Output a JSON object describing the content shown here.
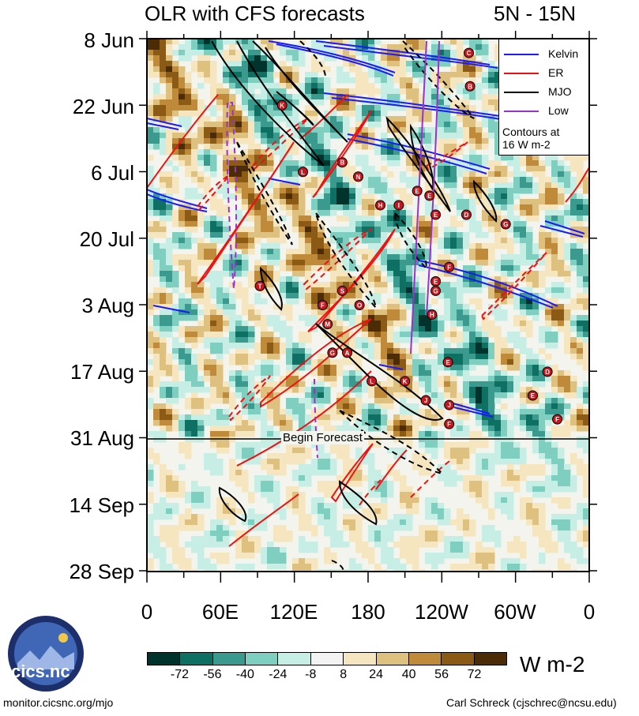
{
  "chart_data": {
    "type": "heatmap",
    "title": "OLR with CFS forecasts",
    "subtitle": "5N - 15N",
    "y_tick_labels": [
      "8 Jun",
      "22 Jun",
      "6 Jul",
      "20 Jul",
      "3 Aug",
      "17 Aug",
      "31 Aug",
      "14 Sep",
      "28 Sep"
    ],
    "x_tick_labels": [
      "0",
      "60E",
      "120E",
      "180",
      "120W",
      "60W",
      "0"
    ],
    "forecast_line_label": "Begin Forecast",
    "forecast_start": "31 Aug",
    "legend": {
      "entries": [
        {
          "label": "Kelvin",
          "color": "#1a1aff"
        },
        {
          "label": "ER",
          "color": "#ee1111"
        },
        {
          "label": "MJO",
          "color": "#000000"
        },
        {
          "label": "Low",
          "color": "#9933cc"
        }
      ],
      "note_line1": "Contours at",
      "note_line2": "16 W m-2"
    },
    "colorbar": {
      "units": "W m-2",
      "levels": [
        "-72",
        "-56",
        "-40",
        "-24",
        "-8",
        "8",
        "24",
        "40",
        "56",
        "72"
      ],
      "colors": [
        "#00332b",
        "#0e6f63",
        "#3a9a8e",
        "#7fcfc0",
        "#c6eee4",
        "#f3f3f3",
        "#f5e6bf",
        "#dfc17f",
        "#bf8a3a",
        "#8b5a14",
        "#4b2c06"
      ]
    },
    "storm_markers": [
      {
        "letter": "C",
        "lon": 262,
        "day": 3
      },
      {
        "letter": "B",
        "lon": 263,
        "day": 10
      },
      {
        "letter": "K",
        "lon": 110,
        "day": 14
      },
      {
        "letter": "B",
        "lon": 159,
        "day": 26
      },
      {
        "letter": "L",
        "lon": 127,
        "day": 28
      },
      {
        "letter": "N",
        "lon": 172,
        "day": 29
      },
      {
        "letter": "E",
        "lon": 220,
        "day": 32
      },
      {
        "letter": "E",
        "lon": 230,
        "day": 33
      },
      {
        "letter": "H",
        "lon": 190,
        "day": 35
      },
      {
        "letter": "I",
        "lon": 205,
        "day": 35
      },
      {
        "letter": "D",
        "lon": 260,
        "day": 37
      },
      {
        "letter": "E",
        "lon": 235,
        "day": 37
      },
      {
        "letter": "G",
        "lon": 292,
        "day": 39
      },
      {
        "letter": "F",
        "lon": 246,
        "day": 48
      },
      {
        "letter": "T",
        "lon": 92,
        "day": 52
      },
      {
        "letter": "E",
        "lon": 235,
        "day": 51
      },
      {
        "letter": "G",
        "lon": 235,
        "day": 53
      },
      {
        "letter": "S",
        "lon": 159,
        "day": 53
      },
      {
        "letter": "F",
        "lon": 143,
        "day": 56
      },
      {
        "letter": "O",
        "lon": 173,
        "day": 56
      },
      {
        "letter": "H",
        "lon": 232,
        "day": 58
      },
      {
        "letter": "M",
        "lon": 147,
        "day": 60
      },
      {
        "letter": "G",
        "lon": 151,
        "day": 66
      },
      {
        "letter": "A",
        "lon": 163,
        "day": 66
      },
      {
        "letter": "E",
        "lon": 245,
        "day": 68
      },
      {
        "letter": "D",
        "lon": 326,
        "day": 70
      },
      {
        "letter": "L",
        "lon": 183,
        "day": 72
      },
      {
        "letter": "K",
        "lon": 210,
        "day": 72
      },
      {
        "letter": "J",
        "lon": 227,
        "day": 76
      },
      {
        "letter": "J",
        "lon": 246,
        "day": 77
      },
      {
        "letter": "E",
        "lon": 314,
        "day": 75
      },
      {
        "letter": "F",
        "lon": 334,
        "day": 80
      },
      {
        "letter": "F",
        "lon": 246,
        "day": 81
      }
    ]
  },
  "footer": {
    "logo_text": "cics.nc",
    "left": "monitor.cicsnc.org/mjo",
    "right": "Carl Schreck (cjschrec@ncsu.edu)"
  }
}
